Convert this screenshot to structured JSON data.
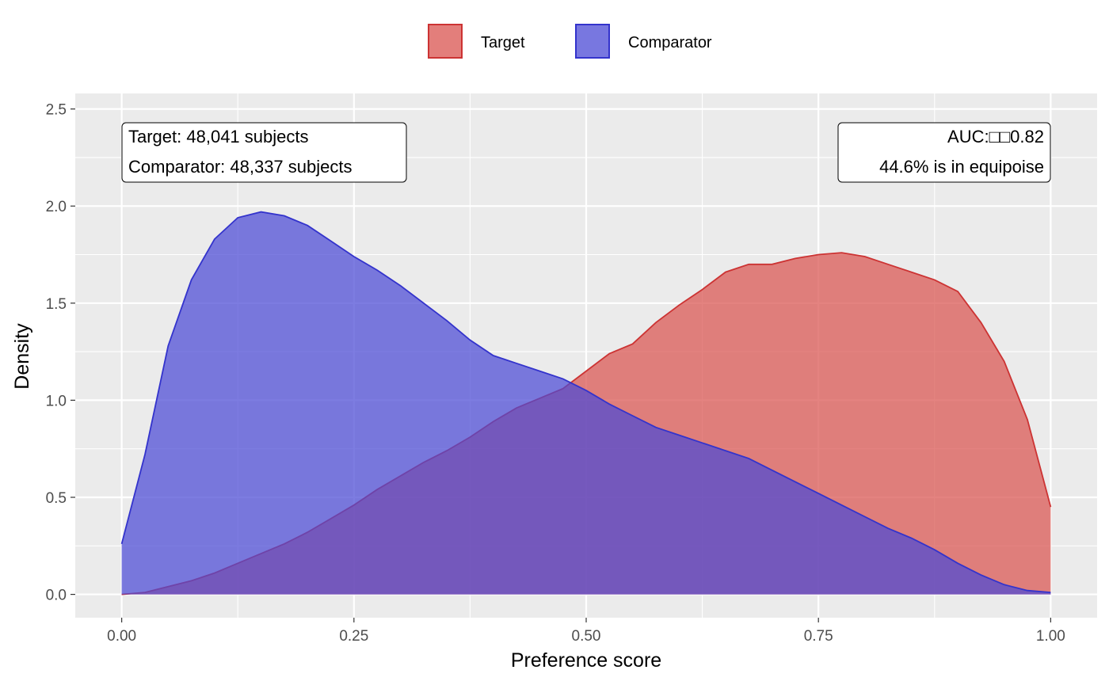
{
  "chart_data": {
    "type": "area",
    "title": "",
    "xlabel": "Preference score",
    "ylabel": "Density",
    "xlim": [
      -0.05,
      1.05
    ],
    "ylim": [
      -0.12,
      2.58
    ],
    "x_ticks": [
      "0.00",
      "0.25",
      "0.50",
      "0.75",
      "1.00"
    ],
    "x_tick_values": [
      0,
      0.25,
      0.5,
      0.75,
      1.0
    ],
    "y_ticks": [
      "0.0",
      "0.5",
      "1.0",
      "1.5",
      "2.0",
      "2.5"
    ],
    "y_tick_values": [
      0,
      0.5,
      1.0,
      1.5,
      2.0,
      2.5
    ],
    "grid": true,
    "legend_position": "top",
    "series": [
      {
        "name": "Target",
        "fill": "#d9534f",
        "stroke": "#cc3333",
        "x": [
          0,
          0.025,
          0.05,
          0.075,
          0.1,
          0.125,
          0.15,
          0.175,
          0.2,
          0.225,
          0.25,
          0.275,
          0.3,
          0.325,
          0.35,
          0.375,
          0.4,
          0.425,
          0.45,
          0.475,
          0.5,
          0.525,
          0.55,
          0.575,
          0.6,
          0.625,
          0.65,
          0.675,
          0.7,
          0.725,
          0.75,
          0.775,
          0.8,
          0.825,
          0.85,
          0.875,
          0.9,
          0.925,
          0.95,
          0.975,
          1.0
        ],
        "y": [
          0.0,
          0.01,
          0.04,
          0.07,
          0.11,
          0.16,
          0.21,
          0.26,
          0.32,
          0.39,
          0.46,
          0.54,
          0.61,
          0.68,
          0.74,
          0.81,
          0.89,
          0.96,
          1.01,
          1.06,
          1.15,
          1.24,
          1.29,
          1.4,
          1.49,
          1.57,
          1.66,
          1.7,
          1.7,
          1.73,
          1.75,
          1.76,
          1.74,
          1.7,
          1.66,
          1.62,
          1.56,
          1.4,
          1.2,
          0.9,
          0.45
        ]
      },
      {
        "name": "Comparator",
        "fill": "#4b49d6",
        "stroke": "#3333cc",
        "x": [
          0,
          0.025,
          0.05,
          0.075,
          0.1,
          0.125,
          0.15,
          0.175,
          0.2,
          0.225,
          0.25,
          0.275,
          0.3,
          0.325,
          0.35,
          0.375,
          0.4,
          0.425,
          0.45,
          0.475,
          0.5,
          0.525,
          0.55,
          0.575,
          0.6,
          0.625,
          0.65,
          0.675,
          0.7,
          0.725,
          0.75,
          0.775,
          0.8,
          0.825,
          0.85,
          0.875,
          0.9,
          0.925,
          0.95,
          0.975,
          1.0
        ],
        "y": [
          0.26,
          0.72,
          1.28,
          1.62,
          1.83,
          1.94,
          1.97,
          1.95,
          1.9,
          1.82,
          1.74,
          1.67,
          1.59,
          1.5,
          1.41,
          1.31,
          1.23,
          1.19,
          1.15,
          1.11,
          1.05,
          0.98,
          0.92,
          0.86,
          0.82,
          0.78,
          0.74,
          0.7,
          0.64,
          0.58,
          0.52,
          0.46,
          0.4,
          0.34,
          0.29,
          0.23,
          0.16,
          0.1,
          0.05,
          0.02,
          0.01
        ]
      }
    ],
    "annotations": {
      "left": [
        "Target: 48,041 subjects",
        "Comparator: 48,337 subjects"
      ],
      "right": [
        "AUC:□□0.82",
        "44.6% is in equipoise"
      ]
    }
  }
}
